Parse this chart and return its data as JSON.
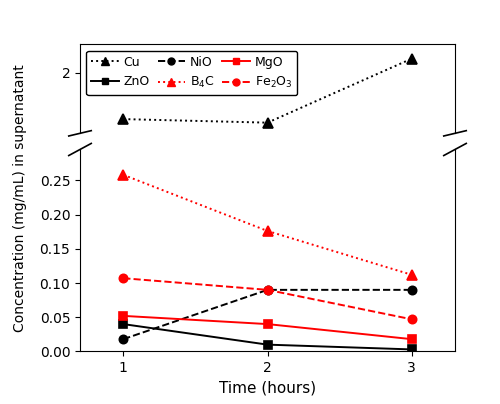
{
  "x": [
    1,
    2,
    3
  ],
  "series": [
    {
      "label": "Cu",
      "values": [
        1.35,
        1.3,
        2.2
      ],
      "color": "black",
      "linestyle": "dotted",
      "marker": "^",
      "markersize": 7,
      "markerfilled": true
    },
    {
      "label": "ZnO",
      "values": [
        0.04,
        0.01,
        0.003
      ],
      "color": "black",
      "linestyle": "solid",
      "marker": "s",
      "markersize": 6,
      "markerfilled": true
    },
    {
      "label": "NiO",
      "values": [
        0.018,
        0.09,
        0.09
      ],
      "color": "black",
      "linestyle": "dashed",
      "marker": "o",
      "markersize": 6,
      "markerfilled": true
    },
    {
      "label": "B$_4$C",
      "values": [
        0.258,
        0.176,
        0.112
      ],
      "color": "red",
      "linestyle": "dotted",
      "marker": "^",
      "markersize": 7,
      "markerfilled": true
    },
    {
      "label": "MgO",
      "values": [
        0.052,
        0.04,
        0.018
      ],
      "color": "red",
      "linestyle": "solid",
      "marker": "s",
      "markersize": 6,
      "markerfilled": true
    },
    {
      "label": "Fe$_2$O$_3$",
      "values": [
        0.107,
        0.09,
        0.047
      ],
      "color": "red",
      "linestyle": "dashed",
      "marker": "o",
      "markersize": 6,
      "markerfilled": true
    }
  ],
  "xlabel": "Time (hours)",
  "ylabel": "Concentration (mg/mL) in supernatant",
  "xticks": [
    1,
    2,
    3
  ],
  "xlim": [
    0.7,
    3.3
  ],
  "ylim_lower": [
    0.0,
    0.295
  ],
  "ylim_upper": [
    1.15,
    2.4
  ],
  "yticks_lower": [
    0.0,
    0.05,
    0.1,
    0.15,
    0.2,
    0.25
  ],
  "yticks_upper": [
    2.0
  ],
  "legend_ncol": 3,
  "legend_fontsize": 9,
  "axis_fontsize": 11,
  "tick_fontsize": 10
}
